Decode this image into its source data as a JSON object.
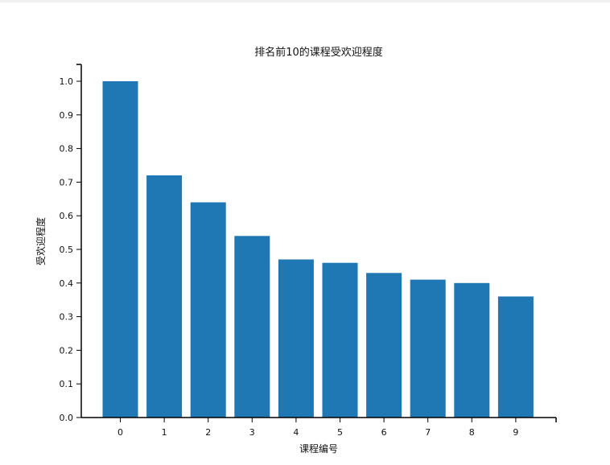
{
  "chart_data": {
    "type": "bar",
    "title": "排名前10的课程受欢迎程度",
    "xlabel": "课程编号",
    "ylabel": "受欢迎程度",
    "categories": [
      "0",
      "1",
      "2",
      "3",
      "4",
      "5",
      "6",
      "7",
      "8",
      "9"
    ],
    "values": [
      1.0,
      0.72,
      0.64,
      0.54,
      0.47,
      0.46,
      0.43,
      0.41,
      0.4,
      0.36
    ],
    "ylim": [
      0,
      1.05
    ],
    "yticks": [
      "0.0",
      "0.1",
      "0.2",
      "0.3",
      "0.4",
      "0.5",
      "0.6",
      "0.7",
      "0.8",
      "0.9",
      "1.0"
    ],
    "bar_color": "#1f77b4",
    "grid": false,
    "legend": "none"
  }
}
